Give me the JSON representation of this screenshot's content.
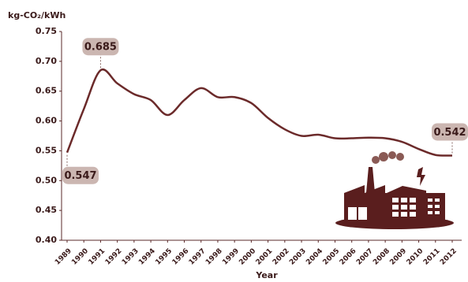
{
  "chart_data": {
    "type": "line",
    "y_label": "kg-CO₂/kWh",
    "x_label": "Year",
    "categories": [
      "1989",
      "1990",
      "1991",
      "1992",
      "1993",
      "1994",
      "1995",
      "1996",
      "1997",
      "1998",
      "1999",
      "2000",
      "2001",
      "2002",
      "2003",
      "2004",
      "2005",
      "2006",
      "2007",
      "2008",
      "2009",
      "2010",
      "2011",
      "2012"
    ],
    "values": [
      0.547,
      0.62,
      0.685,
      0.663,
      0.645,
      0.635,
      0.61,
      0.635,
      0.655,
      0.64,
      0.64,
      0.63,
      0.605,
      0.586,
      0.575,
      0.577,
      0.571,
      0.571,
      0.572,
      0.571,
      0.565,
      0.553,
      0.543,
      0.542
    ],
    "value_labels": [
      "0.547",
      null,
      "0.685",
      null,
      null,
      null,
      null,
      null,
      null,
      null,
      null,
      null,
      null,
      null,
      null,
      null,
      null,
      null,
      null,
      null,
      null,
      null,
      null,
      "0.542"
    ],
    "color": "#6b2a2a",
    "ylim": [
      0.4,
      0.75
    ],
    "yticks": [
      {
        "value": 0.4,
        "label": "0.40"
      },
      0.45,
      {
        "value": 0.5,
        "label": "0.50"
      },
      0.55,
      {
        "value": 0.6,
        "label": "0.60"
      },
      0.65,
      {
        "value": 0.7,
        "label": "0.70"
      },
      0.75
    ]
  }
}
